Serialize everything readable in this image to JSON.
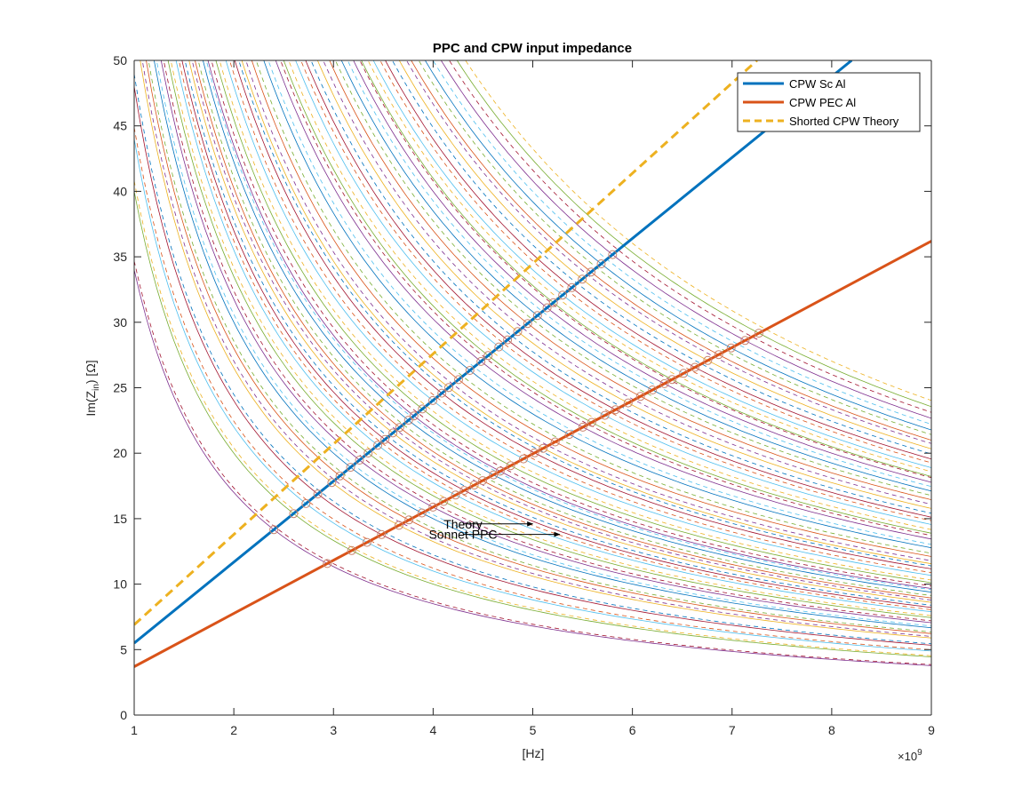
{
  "chart_data": {
    "type": "line",
    "title": "PPC and CPW input impedance",
    "xlabel": "[Hz]",
    "ylabel_main": "Im(Z",
    "ylabel_sub": "in",
    "ylabel_tail": ") [Ω]",
    "x_exponent_base": "×10",
    "x_exponent_power": "9",
    "xlim": [
      1,
      9
    ],
    "ylim": [
      0,
      50
    ],
    "x_ticks": [
      "1",
      "2",
      "3",
      "4",
      "5",
      "6",
      "7",
      "8",
      "9"
    ],
    "y_ticks": [
      "0",
      "5",
      "10",
      "15",
      "20",
      "25",
      "30",
      "35",
      "40",
      "45",
      "50"
    ],
    "grid": false,
    "legend_position": "top-right",
    "series": [
      {
        "name": "CPW Sc Al",
        "color": "#0072BD",
        "style": "solid",
        "x": [
          1,
          8.2
        ],
        "y": [
          5.5,
          50
        ]
      },
      {
        "name": "CPW PEC Al",
        "color": "#D95319",
        "style": "solid",
        "x": [
          1,
          9
        ],
        "y": [
          3.7,
          36.2
        ]
      },
      {
        "name": "Shorted CPW Theory",
        "color": "#EDB120",
        "style": "dashed",
        "x": [
          1,
          7.25
        ],
        "y": [
          6.9,
          50
        ]
      }
    ],
    "ppc_curve_constants": [
      34,
      40,
      44,
      48,
      53,
      56,
      60,
      63.5,
      67,
      71,
      74,
      77.5,
      80.5,
      84.5,
      87,
      91,
      96,
      100.5,
      104,
      109,
      115,
      121,
      125,
      131,
      136,
      142,
      148,
      154,
      160,
      164,
      170,
      176,
      183,
      189,
      196,
      204,
      212
    ],
    "ppc_curve_colors": [
      "#7E2F8E",
      "#77AC30",
      "#4DBEEE",
      "#A2142F",
      "#EDB120",
      "#D95319",
      "#0072BD"
    ],
    "annotations": [
      {
        "text": "Theory",
        "x": 4.3,
        "y": 14.6,
        "arrow_to_x": 5.0,
        "arrow_to_y": 14.6
      },
      {
        "text": "Sonnet PPC",
        "x": 4.3,
        "y": 13.8,
        "arrow_to_x": 5.27,
        "arrow_to_y": 13.8
      }
    ]
  }
}
